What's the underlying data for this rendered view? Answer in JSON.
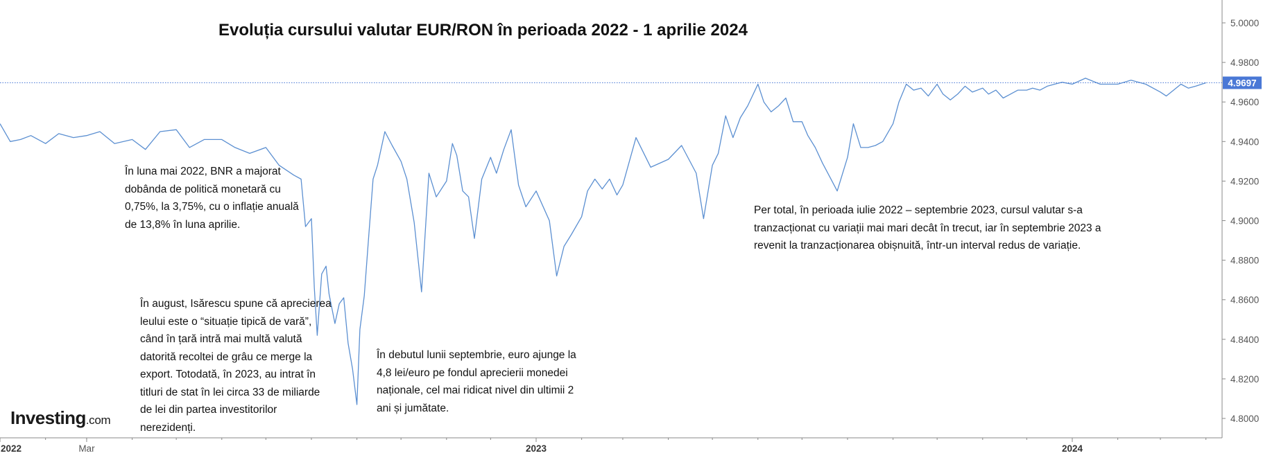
{
  "chart_data": {
    "type": "line",
    "title": "Evoluția cursului valutar EUR/RON în perioada 2022 - 1 aprilie 2024",
    "xlabel": "",
    "ylabel": "",
    "ylim": [
      4.79,
      5.008
    ],
    "xlim": [
      "2022-01-01",
      "2024-04-12"
    ],
    "grid": false,
    "legend": "none",
    "x_ticks": [
      {
        "label": "2022",
        "date": "2022-01-01"
      },
      {
        "label": "Mar",
        "date": "2022-03-01"
      },
      {
        "label": "2023",
        "date": "2023-01-01"
      },
      {
        "label": "2024",
        "date": "2024-01-01"
      }
    ],
    "y_ticks": [
      "4.8000",
      "4.8200",
      "4.8400",
      "4.8600",
      "4.8800",
      "4.9000",
      "4.9200",
      "4.9400",
      "4.9600",
      "4.9800",
      "5.0000"
    ],
    "last_value": "4.9697",
    "series": [
      {
        "color": "#5b8fd1",
        "x": [
          "2022-01-01",
          "2022-01-08",
          "2022-01-15",
          "2022-01-22",
          "2022-02-01",
          "2022-02-10",
          "2022-02-20",
          "2022-03-01",
          "2022-03-10",
          "2022-03-20",
          "2022-04-01",
          "2022-04-10",
          "2022-04-20",
          "2022-05-01",
          "2022-05-10",
          "2022-05-20",
          "2022-06-01",
          "2022-06-10",
          "2022-06-20",
          "2022-07-01",
          "2022-07-10",
          "2022-07-20",
          "2022-07-25",
          "2022-07-28",
          "2022-08-01",
          "2022-08-03",
          "2022-08-05",
          "2022-08-08",
          "2022-08-11",
          "2022-08-13",
          "2022-08-17",
          "2022-08-20",
          "2022-08-23",
          "2022-08-26",
          "2022-08-29",
          "2022-09-01",
          "2022-09-03",
          "2022-09-06",
          "2022-09-09",
          "2022-09-12",
          "2022-09-15",
          "2022-09-20",
          "2022-09-25",
          "2022-10-01",
          "2022-10-05",
          "2022-10-10",
          "2022-10-15",
          "2022-10-20",
          "2022-10-25",
          "2022-11-01",
          "2022-11-05",
          "2022-11-08",
          "2022-11-12",
          "2022-11-16",
          "2022-11-20",
          "2022-11-25",
          "2022-12-01",
          "2022-12-05",
          "2022-12-10",
          "2022-12-15",
          "2022-12-20",
          "2022-12-25",
          "2023-01-01",
          "2023-01-10",
          "2023-01-15",
          "2023-01-20",
          "2023-01-25",
          "2023-02-01",
          "2023-02-05",
          "2023-02-10",
          "2023-02-15",
          "2023-02-20",
          "2023-02-25",
          "2023-03-01",
          "2023-03-10",
          "2023-03-20",
          "2023-04-01",
          "2023-04-10",
          "2023-04-20",
          "2023-04-25",
          "2023-05-01",
          "2023-05-05",
          "2023-05-10",
          "2023-05-15",
          "2023-05-20",
          "2023-05-25",
          "2023-06-01",
          "2023-06-05",
          "2023-06-10",
          "2023-06-15",
          "2023-06-20",
          "2023-06-25",
          "2023-07-01",
          "2023-07-05",
          "2023-07-10",
          "2023-07-15",
          "2023-07-20",
          "2023-07-25",
          "2023-08-01",
          "2023-08-05",
          "2023-08-10",
          "2023-08-15",
          "2023-08-20",
          "2023-08-25",
          "2023-09-01",
          "2023-09-05",
          "2023-09-10",
          "2023-09-15",
          "2023-09-20",
          "2023-09-25",
          "2023-10-01",
          "2023-10-05",
          "2023-10-10",
          "2023-10-15",
          "2023-10-20",
          "2023-10-25",
          "2023-11-01",
          "2023-11-05",
          "2023-11-10",
          "2023-11-15",
          "2023-11-20",
          "2023-11-25",
          "2023-12-01",
          "2023-12-05",
          "2023-12-10",
          "2023-12-15",
          "2023-12-20",
          "2023-12-25",
          "2024-01-01",
          "2024-01-10",
          "2024-01-20",
          "2024-02-01",
          "2024-02-10",
          "2024-02-20",
          "2024-03-01",
          "2024-03-05",
          "2024-03-10",
          "2024-03-15",
          "2024-03-20",
          "2024-03-25",
          "2024-04-01"
        ],
        "values": [
          4.949,
          4.94,
          4.941,
          4.943,
          4.939,
          4.944,
          4.942,
          4.943,
          4.945,
          4.939,
          4.941,
          4.936,
          4.945,
          4.946,
          4.937,
          4.941,
          4.941,
          4.937,
          4.934,
          4.937,
          4.928,
          4.923,
          4.921,
          4.897,
          4.901,
          4.866,
          4.842,
          4.873,
          4.877,
          4.863,
          4.848,
          4.858,
          4.861,
          4.838,
          4.825,
          4.807,
          4.845,
          4.862,
          4.892,
          4.921,
          4.928,
          4.945,
          4.938,
          4.93,
          4.921,
          4.899,
          4.864,
          4.924,
          4.912,
          4.92,
          4.939,
          4.933,
          4.915,
          4.912,
          4.891,
          4.921,
          4.932,
          4.924,
          4.936,
          4.946,
          4.918,
          4.907,
          4.915,
          4.9,
          4.872,
          4.887,
          4.893,
          4.902,
          4.915,
          4.921,
          4.916,
          4.921,
          4.913,
          4.918,
          4.942,
          4.927,
          4.931,
          4.938,
          4.924,
          4.901,
          4.928,
          4.934,
          4.953,
          4.942,
          4.952,
          4.958,
          4.969,
          4.96,
          4.955,
          4.958,
          4.962,
          4.95,
          4.95,
          4.943,
          4.937,
          4.929,
          4.922,
          4.915,
          4.932,
          4.949,
          4.937,
          4.937,
          4.938,
          4.94,
          4.949,
          4.96,
          4.969,
          4.966,
          4.967,
          4.963,
          4.969,
          4.964,
          4.961,
          4.964,
          4.968,
          4.965,
          4.967,
          4.964,
          4.966,
          4.962,
          4.964,
          4.966,
          4.966,
          4.967,
          4.966,
          4.968,
          4.969,
          4.97,
          4.969,
          4.972,
          4.969,
          4.969,
          4.971,
          4.969,
          4.965,
          4.963,
          4.966,
          4.969,
          4.967,
          4.968,
          4.9697
        ]
      }
    ]
  },
  "annotations": [
    {
      "lines": [
        "În luna mai 2022, BNR a majorat",
        "dobânda de politică monetară cu",
        "0,75%, la 3,75%, cu o inflație anuală",
        "de 13,8% în luna aprilie."
      ]
    },
    {
      "lines": [
        "În august, Isărescu spune că aprecierea",
        "leului este o “situație tipică de vară”,",
        "când în țară intră mai multă valută",
        "datorită recoltei de grâu ce merge la",
        "export. Totodată, în 2023, au intrat în",
        "titluri de stat în lei circa 33 de miliarde",
        "de lei din partea investitorilor",
        "nerezidenți."
      ]
    },
    {
      "lines": [
        "În debutul lunii septembrie, euro ajunge la",
        "4,8 lei/euro pe fondul aprecierii monedei",
        "naționale, cel mai ridicat nivel din ultimii 2",
        "ani și jumătate."
      ]
    },
    {
      "lines": [
        "Per total, în perioada iulie 2022 – septembrie 2023, cursul valutar s-a",
        "tranzacționat cu variații mai mari decât în trecut, iar în septembrie 2023 a",
        "revenit la tranzacționarea obișnuită, într-un interval redus de variație."
      ]
    }
  ],
  "logo": {
    "main": "Investing",
    "suffix": ".com"
  },
  "colors": {
    "line": "#5b8fd1",
    "price_tag": "#4a78d6",
    "axis": "#888888",
    "tick_text": "#555555"
  }
}
